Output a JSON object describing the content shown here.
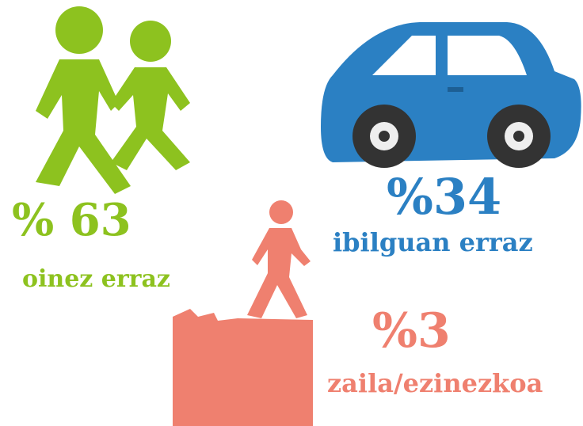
{
  "items": [
    {
      "value": "% 63",
      "label": "oinez erraz"
    },
    {
      "value": "%34",
      "label": "ibilguan erraz"
    },
    {
      "value": "%3",
      "label": "zaila/ezinezkoa"
    }
  ]
}
